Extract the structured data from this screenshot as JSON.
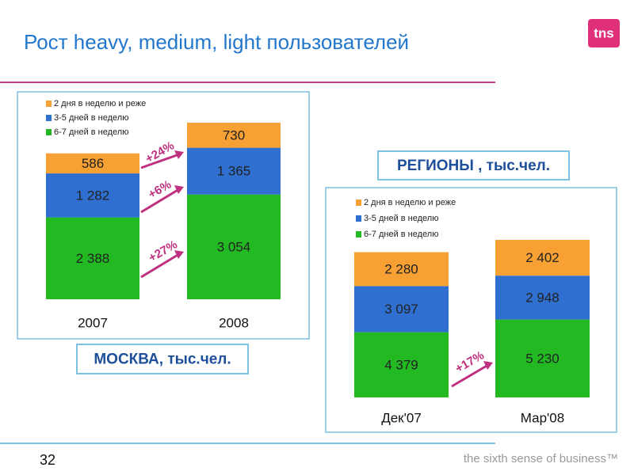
{
  "title": "Рост heavy, medium, light пользователей",
  "logo": "tns",
  "page_number": "32",
  "footer": "the sixth sense of business™",
  "chart_data": [
    {
      "type": "bar",
      "stacked": true,
      "subtitle": "МОСКВА, тыс.чел.",
      "categories": [
        "2007",
        "2008"
      ],
      "series": [
        {
          "name": "2 дня в неделю и реже",
          "color": "#f7a033",
          "values": [
            586,
            730
          ],
          "value_labels": [
            "586",
            "730"
          ]
        },
        {
          "name": "3-5 дней в неделю",
          "color": "#2e6fd0",
          "values": [
            1282,
            1365
          ],
          "value_labels": [
            "1 282",
            "1 365"
          ]
        },
        {
          "name": "6-7 дней в неделю",
          "color": "#22b922",
          "values": [
            2388,
            3054
          ],
          "value_labels": [
            "2 388",
            "3 054"
          ]
        }
      ],
      "annotations": [
        "+24%",
        "+6%",
        "+27%"
      ]
    },
    {
      "type": "bar",
      "stacked": true,
      "subtitle": "РЕГИОНЫ , тыс.чел.",
      "categories": [
        "Дек'07",
        "Мар'08"
      ],
      "series": [
        {
          "name": "2 дня в неделю и реже",
          "color": "#f7a033",
          "values": [
            2280,
            2402
          ],
          "value_labels": [
            "2 280",
            "2 402"
          ]
        },
        {
          "name": "3-5 дней в неделю",
          "color": "#2e6fd0",
          "values": [
            3097,
            2948
          ],
          "value_labels": [
            "3 097",
            "2 948"
          ]
        },
        {
          "name": "6-7 дней в неделю",
          "color": "#22b922",
          "values": [
            4379,
            5230
          ],
          "value_labels": [
            "4 379",
            "5 230"
          ]
        }
      ],
      "annotations": [
        "+17%"
      ]
    }
  ]
}
